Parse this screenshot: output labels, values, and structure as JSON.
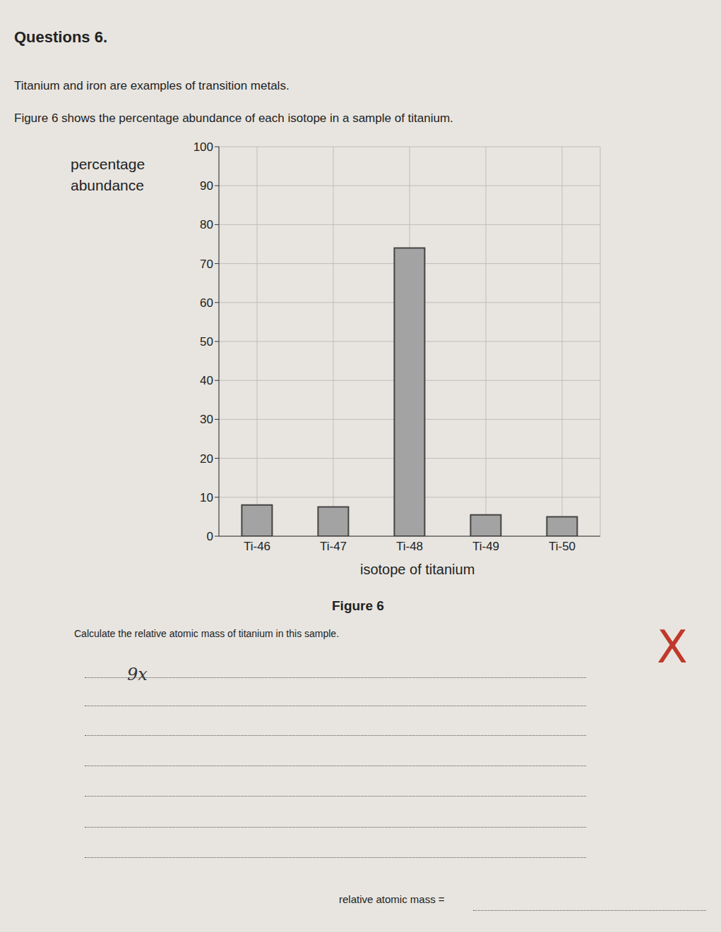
{
  "page": {
    "heading": "Questions 6.",
    "intro": "Titanium and iron are examples of transition metals.",
    "figure_text": "Figure 6 shows the percentage abundance of each isotope in a sample of titanium.",
    "caption": "Figure 6",
    "question": "Calculate the relative atomic mass of titanium in this sample.",
    "handwritten_answer": "9x",
    "marking": "X",
    "answer_prompt": "relative atomic mass ="
  },
  "chart_data": {
    "type": "bar",
    "y_label": "percentage abundance",
    "x_label": "isotope of titanium",
    "categories": [
      "Ti-46",
      "Ti-47",
      "Ti-48",
      "Ti-49",
      "Ti-50"
    ],
    "values": [
      8,
      7.5,
      74,
      5.5,
      5
    ],
    "color": "#a3a3a3",
    "ylim": [
      0,
      100
    ],
    "yticks": [
      0,
      10,
      20,
      30,
      40,
      50,
      60,
      70,
      80,
      90,
      100
    ],
    "grid": true
  }
}
